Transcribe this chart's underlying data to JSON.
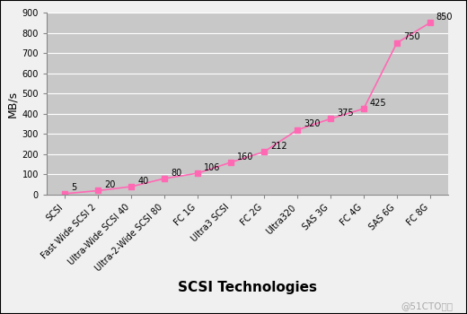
{
  "categories": [
    "SCSI",
    "Fast Wide SCSI 2",
    "Ultra-Wide SCSI 40",
    "Ultra-2-Wide SCSI 80",
    "FC 1G",
    "Ultra3 SCSI",
    "FC 2G",
    "Ultra320",
    "SAS 3G",
    "FC 4G",
    "SAS 6G",
    "FC 8G"
  ],
  "values": [
    5,
    20,
    40,
    80,
    106,
    160,
    212,
    320,
    375,
    425,
    750,
    850
  ],
  "line_color": "#FF69B4",
  "marker_color": "#FF69B4",
  "plot_bg_color": "#C8C8C8",
  "fig_bg_color": "#F0F0F0",
  "title": "SCSI Technologies",
  "ylabel": "MB/s",
  "ylim": [
    0,
    900
  ],
  "yticks": [
    0,
    100,
    200,
    300,
    400,
    500,
    600,
    700,
    800,
    900
  ],
  "annotation_color": "#000000",
  "watermark": "@51CTO博客",
  "watermark_color": "#AAAAAA",
  "title_fontsize": 11,
  "ylabel_fontsize": 9,
  "tick_fontsize": 7,
  "annot_fontsize": 7
}
